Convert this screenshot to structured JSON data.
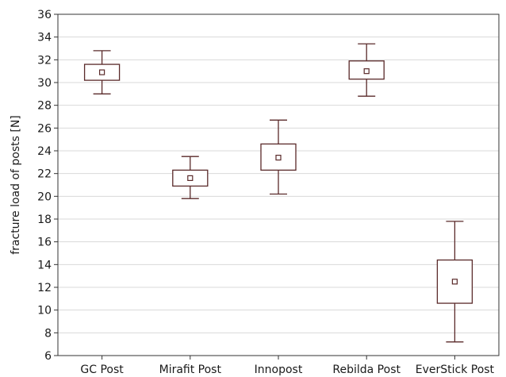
{
  "chart_data": {
    "type": "box",
    "title": "",
    "xlabel": "",
    "ylabel": "fracture load of posts [N]",
    "ylim": [
      6,
      36
    ],
    "yticks": [
      6,
      8,
      10,
      12,
      14,
      16,
      18,
      20,
      22,
      24,
      26,
      28,
      30,
      32,
      34,
      36
    ],
    "grid": true,
    "legend": "none",
    "colors": {
      "box_stroke": "#5a2a2a",
      "grid": "#d9d9d9",
      "frame": "#333333"
    },
    "categories": [
      "GC Post",
      "Mirafit Post",
      "Innopost",
      "Rebilda Post",
      "EverStick Post"
    ],
    "boxes": [
      {
        "category": "GC Post",
        "whisker_low": 29.0,
        "box_low": 30.2,
        "center": 30.9,
        "box_high": 31.6,
        "whisker_high": 32.8
      },
      {
        "category": "Mirafit Post",
        "whisker_low": 19.8,
        "box_low": 20.9,
        "center": 21.6,
        "box_high": 22.3,
        "whisker_high": 23.5
      },
      {
        "category": "Innopost",
        "whisker_low": 20.2,
        "box_low": 22.3,
        "center": 23.4,
        "box_high": 24.6,
        "whisker_high": 26.7
      },
      {
        "category": "Rebilda Post",
        "whisker_low": 28.8,
        "box_low": 30.3,
        "center": 31.0,
        "box_high": 31.9,
        "whisker_high": 33.4
      },
      {
        "category": "EverStick Post",
        "whisker_low": 7.2,
        "box_low": 10.6,
        "center": 12.5,
        "box_high": 14.4,
        "whisker_high": 17.8
      }
    ]
  }
}
